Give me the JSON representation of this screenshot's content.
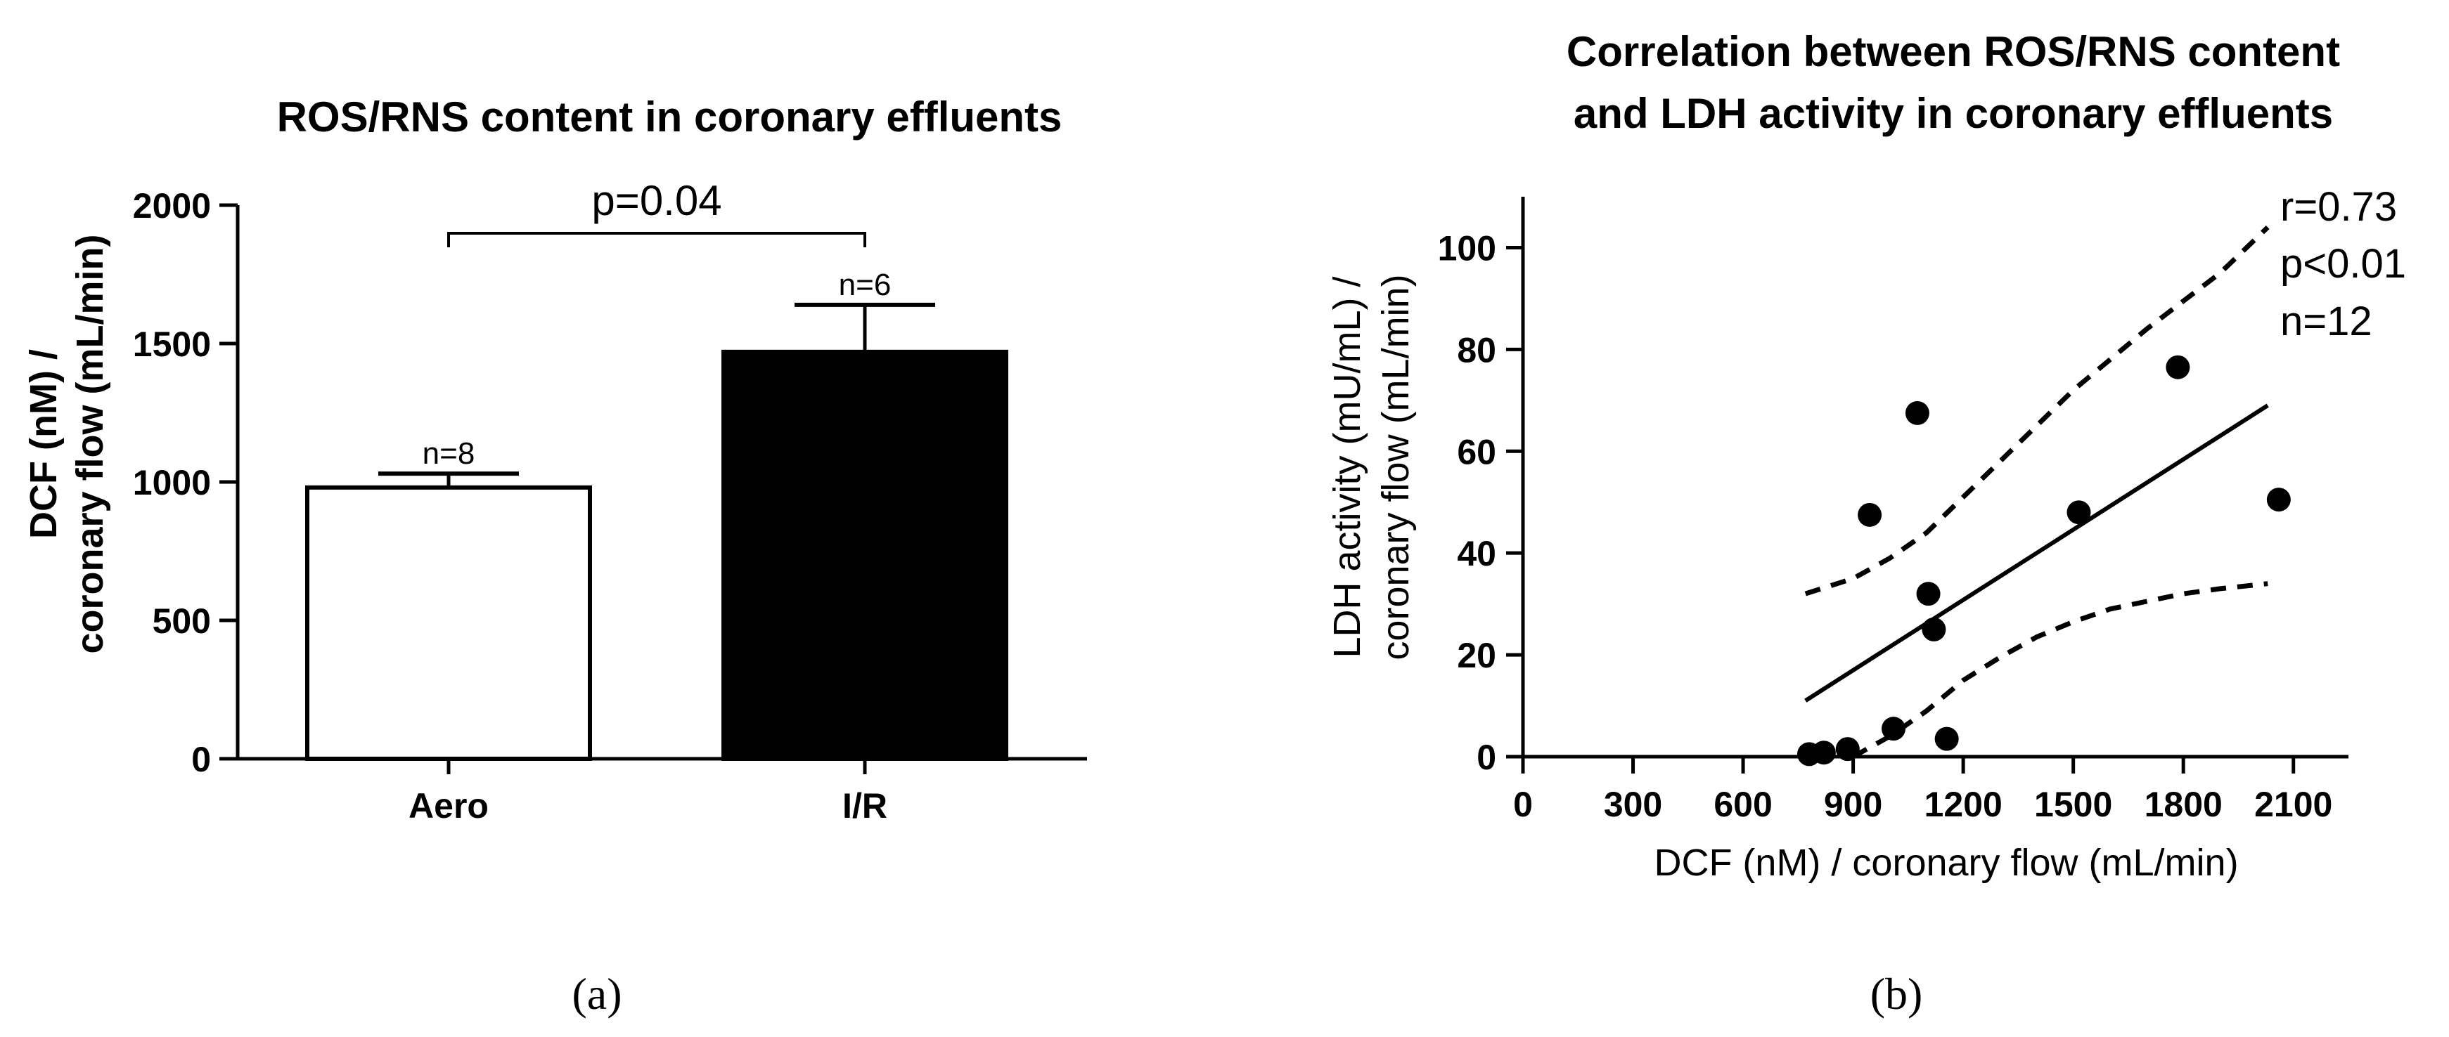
{
  "chart_data": [
    {
      "type": "bar",
      "title": "ROS/RNS content in coronary effluents",
      "ylabel_line1": "DCF (nM) /",
      "ylabel_line2": "coronary flow (mL/min)",
      "xlabel": "",
      "ylim": [
        0,
        2000
      ],
      "yticks": [
        0,
        500,
        1000,
        1500,
        2000
      ],
      "categories": [
        "Aero",
        "I/R"
      ],
      "values": [
        980,
        1470
      ],
      "errors": [
        50,
        170
      ],
      "sample_sizes": [
        "n=8",
        "n=6"
      ],
      "bar_colors": [
        "#ffffff",
        "#000000"
      ],
      "significance_label": "p=0.04",
      "panel_label": "(a)"
    },
    {
      "type": "scatter",
      "title_line1": "Correlation between ROS/RNS content",
      "title_line2": "and LDH activity in coronary effluents",
      "xlabel": "DCF (nM) / coronary flow (mL/min)",
      "ylabel_line1": "LDH activity (mU/mL) /",
      "ylabel_line2": "coronary flow (mL/min)",
      "xlim": [
        0,
        2250
      ],
      "ylim": [
        0,
        110
      ],
      "xticks": [
        0,
        300,
        600,
        900,
        1200,
        1500,
        1800,
        2100
      ],
      "yticks": [
        0,
        20,
        40,
        60,
        80,
        100
      ],
      "points": [
        {
          "x": 780,
          "y": 0.5
        },
        {
          "x": 820,
          "y": 0.8
        },
        {
          "x": 885,
          "y": 1.5
        },
        {
          "x": 1010,
          "y": 5.5
        },
        {
          "x": 1155,
          "y": 3.5
        },
        {
          "x": 1120,
          "y": 25
        },
        {
          "x": 1105,
          "y": 32
        },
        {
          "x": 945,
          "y": 47.5
        },
        {
          "x": 1075,
          "y": 67.5
        },
        {
          "x": 1515,
          "y": 48
        },
        {
          "x": 1785,
          "y": 76.5
        },
        {
          "x": 2060,
          "y": 50.5
        }
      ],
      "regression_line": [
        [
          770,
          11
        ],
        [
          2030,
          69
        ]
      ],
      "upper_band": [
        [
          770,
          32
        ],
        [
          900,
          35
        ],
        [
          1000,
          39
        ],
        [
          1100,
          44
        ],
        [
          1200,
          51
        ],
        [
          1300,
          58
        ],
        [
          1400,
          65
        ],
        [
          1500,
          72
        ],
        [
          1600,
          78
        ],
        [
          1700,
          84
        ],
        [
          1800,
          89.5
        ],
        [
          1900,
          95
        ],
        [
          2030,
          104
        ]
      ],
      "lower_band": [
        [
          900,
          0
        ],
        [
          1000,
          4
        ],
        [
          1100,
          9
        ],
        [
          1200,
          15
        ],
        [
          1300,
          19.5
        ],
        [
          1400,
          23.5
        ],
        [
          1500,
          26.5
        ],
        [
          1600,
          29
        ],
        [
          1700,
          30.5
        ],
        [
          1800,
          32
        ],
        [
          1900,
          33
        ],
        [
          2030,
          34
        ]
      ],
      "stats": [
        "r=0.73",
        "p<0.01",
        "n=12"
      ],
      "panel_label": "(b)"
    }
  ]
}
